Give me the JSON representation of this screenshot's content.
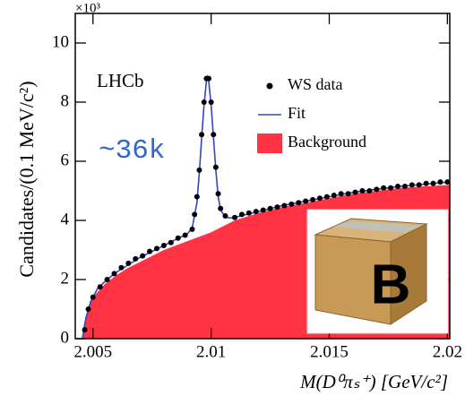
{
  "chart_data": {
    "type": "line",
    "scale_label": "×10³",
    "x_label": "M(D⁰πₛ⁺) [GeV/c²]",
    "y_label": "Candidates/(0.1 MeV/c²)",
    "annotations": [
      "LHCb",
      "~36k"
    ],
    "inset_label": "B",
    "xlim": [
      2.00425,
      2.0201
    ],
    "ylim": [
      0,
      11
    ],
    "xticks": [
      2.005,
      2.01,
      2.015,
      2.02
    ],
    "yticks": [
      0,
      2,
      4,
      6,
      8,
      10
    ],
    "series": [
      {
        "name": "WS data",
        "type": "scatter",
        "color": "#000000",
        "x": [
          2.00465,
          2.0048,
          2.005,
          2.0053,
          2.0056,
          2.0059,
          2.0062,
          2.0065,
          2.0068,
          2.0071,
          2.0074,
          2.0077,
          2.008,
          2.0083,
          2.0086,
          2.0089,
          2.0092,
          2.0093,
          2.0094,
          2.0095,
          2.0096,
          2.0097,
          2.0098,
          2.0099,
          2.01,
          2.0101,
          2.0102,
          2.0103,
          2.0104,
          2.0106,
          2.011,
          2.0113,
          2.0116,
          2.0119,
          2.0122,
          2.0125,
          2.0128,
          2.0131,
          2.0134,
          2.0137,
          2.014,
          2.0143,
          2.0146,
          2.0149,
          2.0152,
          2.0155,
          2.0158,
          2.0161,
          2.0164,
          2.0167,
          2.017,
          2.0173,
          2.0176,
          2.0179,
          2.0182,
          2.0185,
          2.0188,
          2.0191,
          2.0194,
          2.0197,
          2.02
        ],
        "values": [
          0.3,
          1.0,
          1.4,
          1.75,
          2.0,
          2.2,
          2.4,
          2.55,
          2.7,
          2.8,
          2.95,
          3.05,
          3.15,
          3.25,
          3.4,
          3.5,
          3.7,
          4.2,
          4.8,
          5.7,
          6.9,
          8.0,
          8.8,
          8.8,
          8.0,
          6.9,
          5.8,
          4.9,
          4.4,
          4.15,
          4.1,
          4.2,
          4.25,
          4.3,
          4.35,
          4.4,
          4.45,
          4.5,
          4.55,
          4.6,
          4.65,
          4.7,
          4.75,
          4.8,
          4.85,
          4.9,
          4.9,
          4.95,
          5.0,
          5.0,
          5.05,
          5.1,
          5.1,
          5.15,
          5.15,
          5.2,
          5.2,
          5.25,
          5.25,
          5.3,
          5.3
        ]
      },
      {
        "name": "Fit",
        "type": "line",
        "color": "#3344cc",
        "x": [
          2.00455,
          2.0047,
          2.0049,
          2.0052,
          2.0056,
          2.006,
          2.0065,
          2.007,
          2.0075,
          2.008,
          2.0085,
          2.009,
          2.0092,
          2.0094,
          2.0095,
          2.0096,
          2.0097,
          2.0098,
          2.00985,
          2.0099,
          2.01,
          2.0101,
          2.0102,
          2.0103,
          2.0104,
          2.0106,
          2.0108,
          2.011,
          2.0115,
          2.012,
          2.013,
          2.014,
          2.015,
          2.016,
          2.017,
          2.018,
          2.019,
          2.0201
        ],
        "values": [
          0,
          0.7,
          1.25,
          1.7,
          2.0,
          2.25,
          2.5,
          2.75,
          2.95,
          3.15,
          3.35,
          3.55,
          3.75,
          4.6,
          5.6,
          6.8,
          7.9,
          8.7,
          8.85,
          8.7,
          7.9,
          6.8,
          5.7,
          4.8,
          4.35,
          4.12,
          4.08,
          4.1,
          4.2,
          4.3,
          4.5,
          4.65,
          4.8,
          4.95,
          5.05,
          5.15,
          5.22,
          5.3
        ]
      },
      {
        "name": "Background",
        "type": "area",
        "color": "#ff3344",
        "x": [
          2.00455,
          2.0046,
          2.0048,
          2.005,
          2.0055,
          2.006,
          2.0065,
          2.007,
          2.008,
          2.009,
          2.01,
          2.011,
          2.012,
          2.013,
          2.014,
          2.015,
          2.016,
          2.017,
          2.018,
          2.019,
          2.0201
        ],
        "values": [
          0,
          0.4,
          1.05,
          1.4,
          1.85,
          2.15,
          2.4,
          2.6,
          3.0,
          3.3,
          3.6,
          4.0,
          4.25,
          4.45,
          4.6,
          4.75,
          4.9,
          5.0,
          5.1,
          5.15,
          5.2
        ]
      }
    ]
  }
}
